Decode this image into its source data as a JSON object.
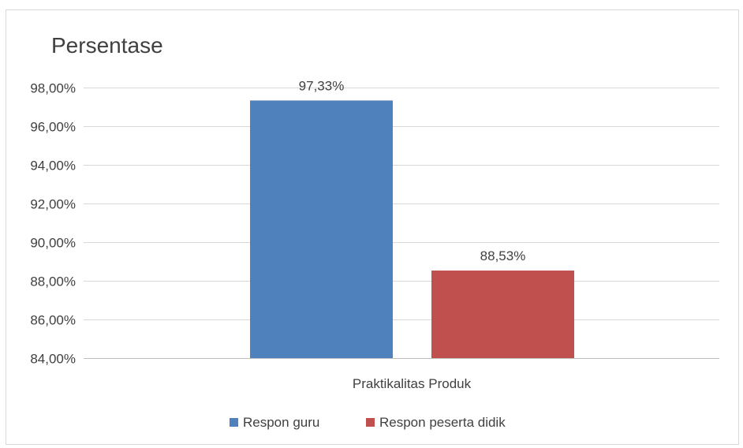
{
  "chart_data": {
    "type": "bar",
    "title": "Persentase",
    "categories": [
      "Praktikalitas Produk"
    ],
    "series": [
      {
        "name": "Respon guru",
        "values": [
          97.33
        ],
        "label": "97,33%",
        "color": "#4f81bd"
      },
      {
        "name": "Respon peserta didik",
        "values": [
          88.53
        ],
        "label": "88,53%",
        "color": "#c0504d"
      }
    ],
    "ylim": [
      84,
      98
    ],
    "yticks": [
      84,
      86,
      88,
      90,
      92,
      94,
      96,
      98
    ],
    "ytick_labels": [
      "84,00%",
      "86,00%",
      "88,00%",
      "90,00%",
      "92,00%",
      "94,00%",
      "96,00%",
      "98,00%"
    ],
    "grid": true,
    "legend_position": "bottom"
  }
}
